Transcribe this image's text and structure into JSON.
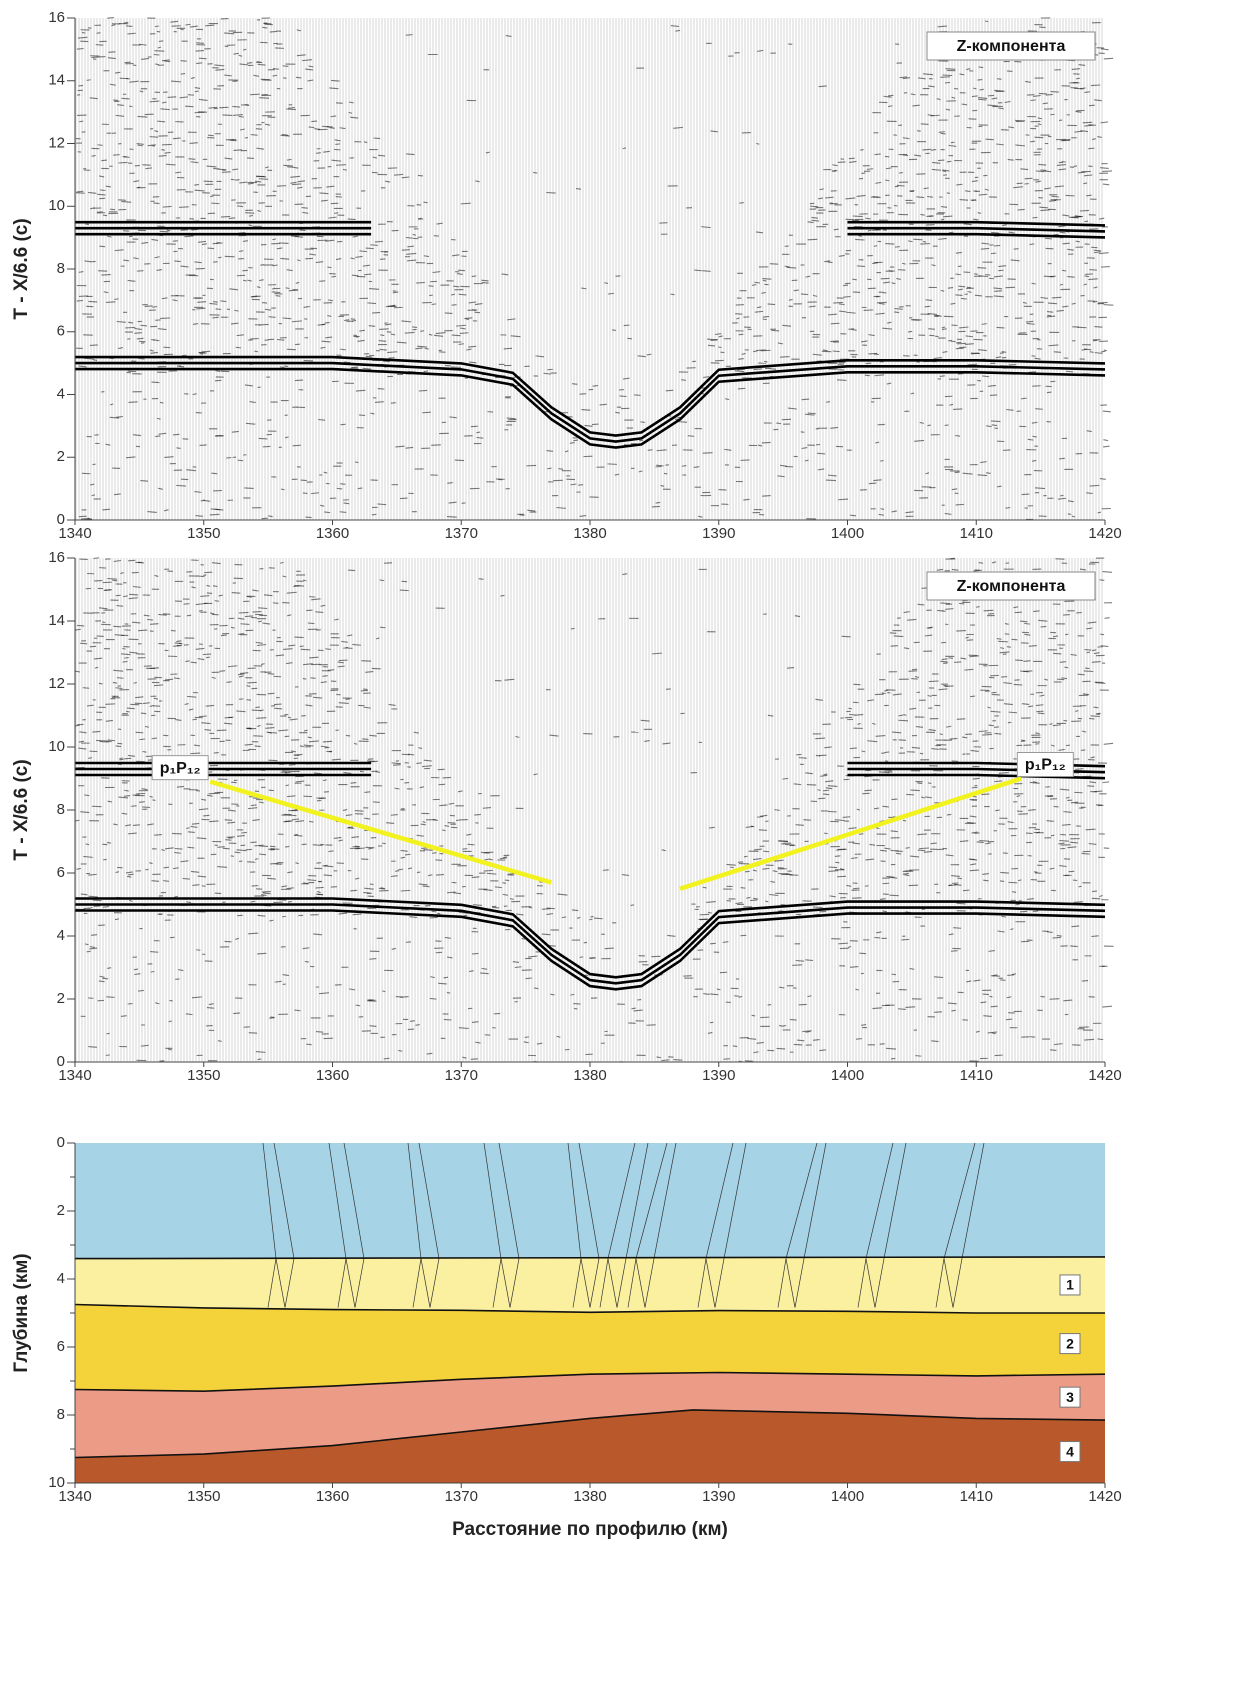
{
  "chart_data": [
    {
      "type": "line",
      "label_box": "Z-компонента",
      "ylabel": "T - X/6.6 (c)",
      "xlim": [
        1340,
        1420
      ],
      "xticks": [
        1340,
        1350,
        1360,
        1370,
        1380,
        1390,
        1400,
        1410,
        1420
      ],
      "ylim": [
        0,
        16
      ],
      "yticks": [
        0,
        2,
        4,
        6,
        8,
        10,
        12,
        14,
        16
      ],
      "series": [
        {
          "color": "#000000",
          "x": [
            1340,
            1350,
            1360,
            1370,
            1374,
            1377,
            1380,
            1382,
            1384,
            1387,
            1390,
            1400,
            1410,
            1420
          ],
          "values": [
            5.0,
            5.0,
            5.0,
            4.8,
            4.5,
            3.4,
            2.6,
            2.5,
            2.6,
            3.4,
            4.6,
            4.9,
            4.9,
            4.8
          ]
        },
        {
          "color": "#000000",
          "x": [
            1340,
            1350,
            1363,
            1380,
            1400,
            1410,
            1420
          ],
          "values": [
            9.3,
            9.3,
            9.3,
            null,
            9.3,
            9.3,
            9.2
          ]
        }
      ]
    },
    {
      "type": "line",
      "label_box": "Z-компонента",
      "ylabel": "T - X/6.6 (c)",
      "xlim": [
        1340,
        1420
      ],
      "xticks": [
        1340,
        1350,
        1360,
        1370,
        1380,
        1390,
        1400,
        1410,
        1420
      ],
      "ylim": [
        0,
        16
      ],
      "yticks": [
        0,
        2,
        4,
        6,
        8,
        10,
        12,
        14,
        16
      ],
      "series": [
        {
          "color": "#000000",
          "x": [
            1340,
            1350,
            1360,
            1370,
            1374,
            1377,
            1380,
            1382,
            1384,
            1387,
            1390,
            1400,
            1410,
            1420
          ],
          "values": [
            5.0,
            5.0,
            5.0,
            4.8,
            4.5,
            3.4,
            2.6,
            2.5,
            2.6,
            3.4,
            4.6,
            4.9,
            4.9,
            4.8
          ]
        },
        {
          "color": "#000000",
          "x": [
            1340,
            1350,
            1363,
            1380,
            1400,
            1410,
            1420
          ],
          "values": [
            9.3,
            9.3,
            9.3,
            null,
            9.3,
            9.3,
            9.2
          ]
        },
        {
          "color": "#f2f21e",
          "x": [
            1350.5,
            1377
          ],
          "values": [
            8.9,
            5.7
          ]
        },
        {
          "color": "#f2f21e",
          "x": [
            1387,
            1413.5
          ],
          "values": [
            5.5,
            9.0
          ]
        }
      ],
      "annotations": [
        "p₁P₁₂",
        "p₁P₁₂"
      ]
    },
    {
      "type": "area",
      "ylabel": "Глубина (км)",
      "xlabel": "Расстояние по профилю (км)",
      "xlim": [
        1340,
        1420
      ],
      "xticks": [
        1340,
        1350,
        1360,
        1370,
        1380,
        1390,
        1400,
        1410,
        1420
      ],
      "ylim": [
        0,
        10
      ],
      "yticks": [
        0,
        2,
        4,
        6,
        8,
        10
      ],
      "y_minor_ticks": [
        1,
        3,
        5,
        7,
        9
      ],
      "y_reversed": true,
      "background_color": "#a6d3e6",
      "series": [
        {
          "name": "1",
          "color": "#faf0a0",
          "x": [
            1340,
            1420
          ],
          "values": [
            3.4,
            3.35
          ]
        },
        {
          "name": "2",
          "color": "#f4d23a",
          "x": [
            1340,
            1350,
            1360,
            1370,
            1380,
            1390,
            1400,
            1410,
            1420
          ],
          "values": [
            4.75,
            4.85,
            4.9,
            4.92,
            4.98,
            4.93,
            4.95,
            5.0,
            5.0
          ]
        },
        {
          "name": "3",
          "color": "#ec9b87",
          "x": [
            1340,
            1350,
            1360,
            1370,
            1380,
            1390,
            1400,
            1410,
            1420
          ],
          "values": [
            7.25,
            7.3,
            7.15,
            6.95,
            6.8,
            6.75,
            6.8,
            6.85,
            6.8
          ]
        },
        {
          "name": "4",
          "color": "#b9592b",
          "x": [
            1340,
            1350,
            1360,
            1370,
            1380,
            1388,
            1400,
            1410,
            1420
          ],
          "values": [
            9.25,
            9.15,
            8.9,
            8.5,
            8.1,
            7.85,
            7.95,
            8.1,
            8.15
          ]
        }
      ]
    }
  ]
}
